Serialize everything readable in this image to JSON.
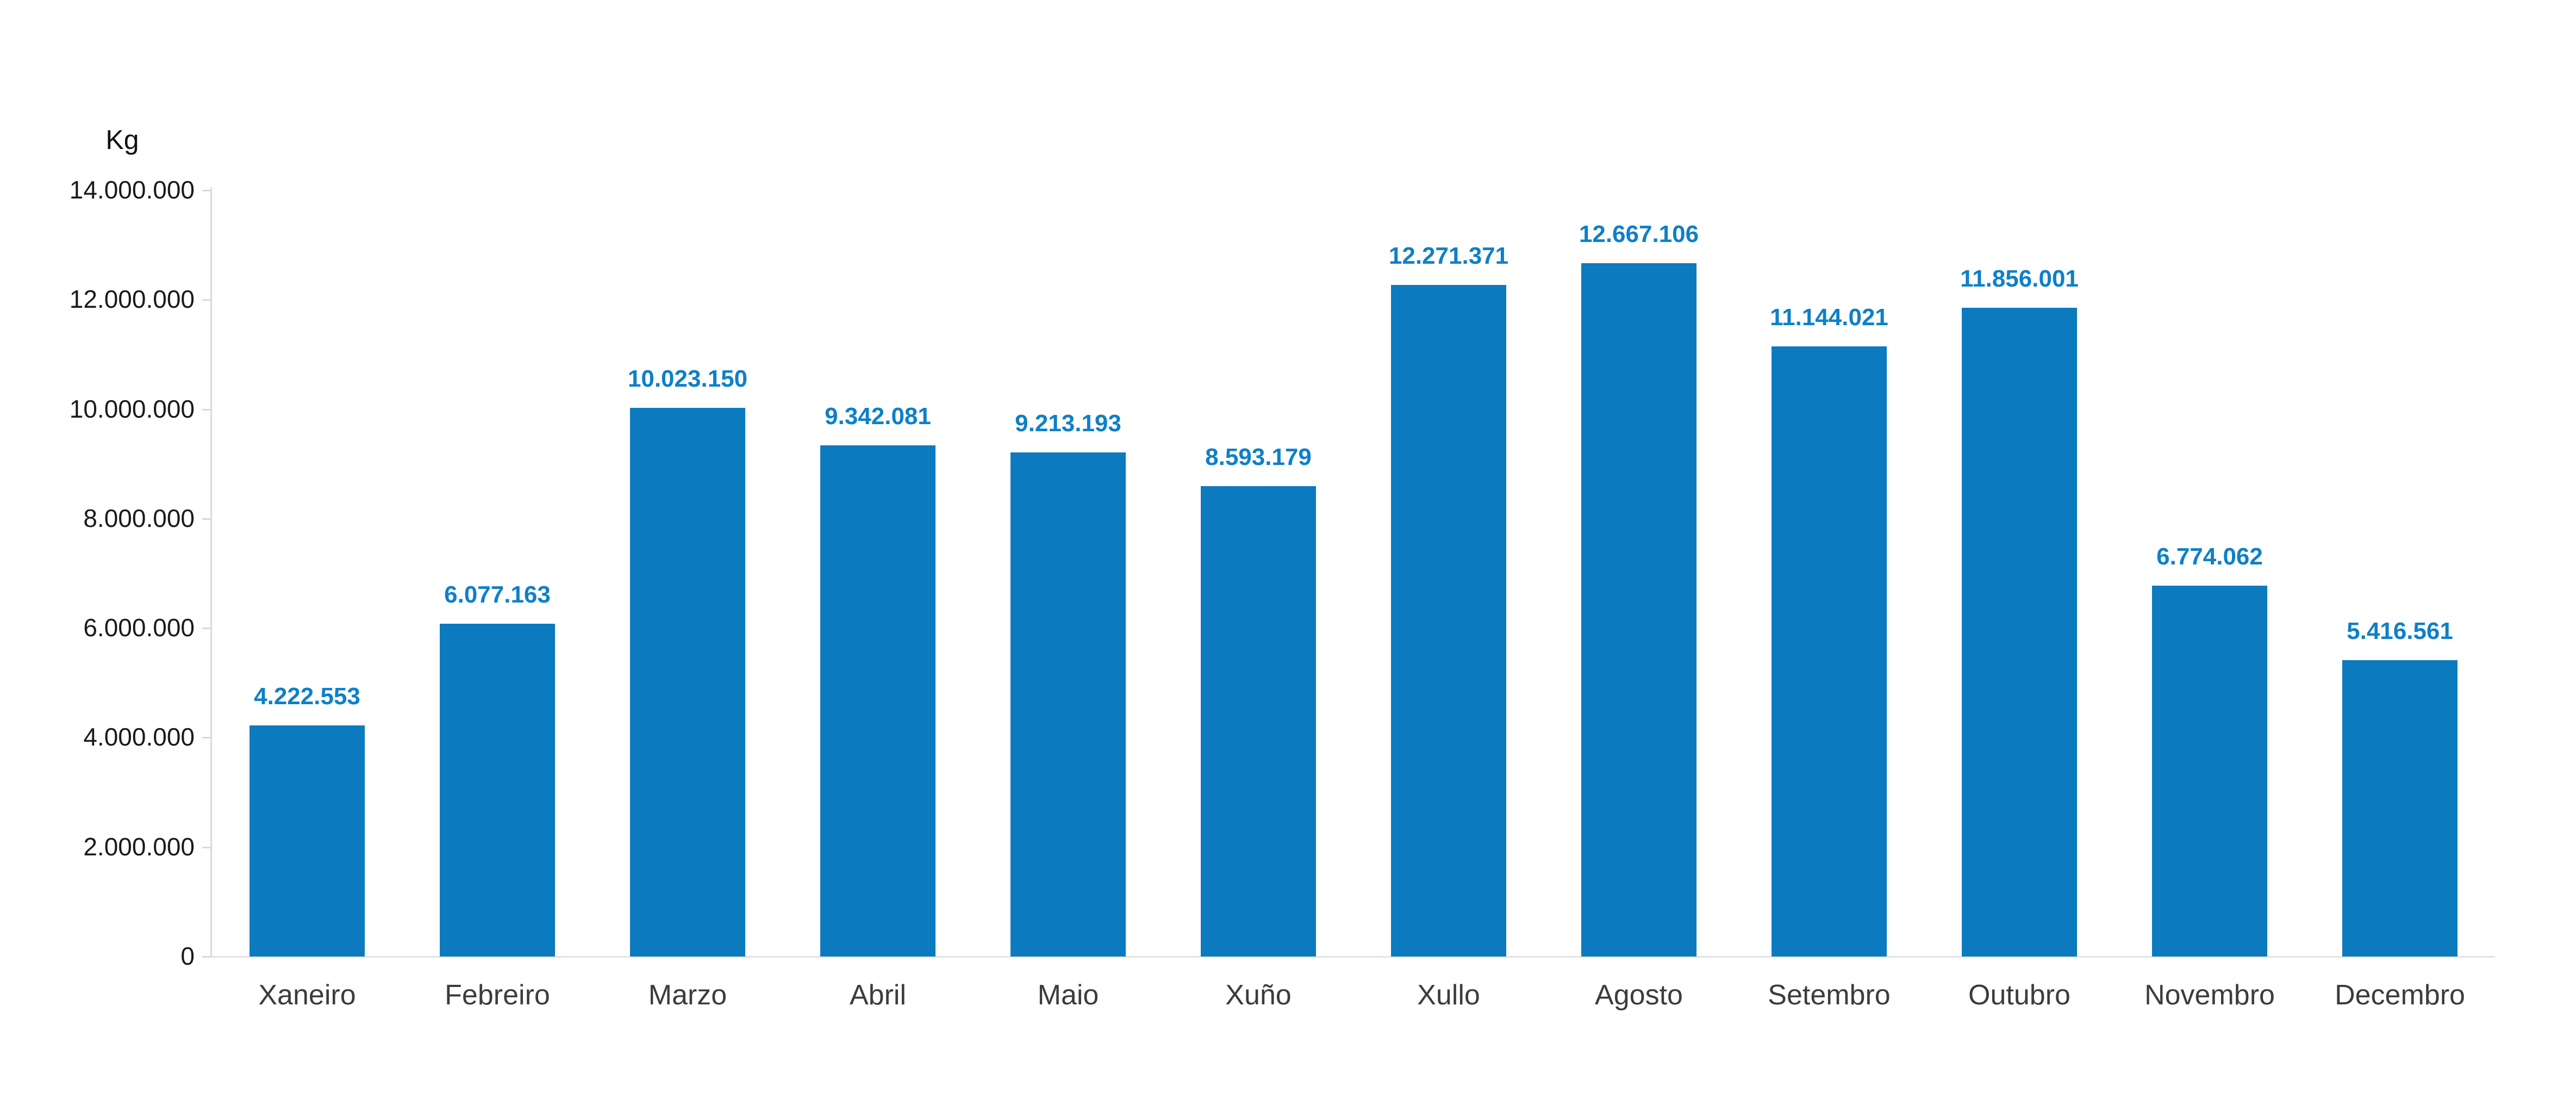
{
  "chart_data": {
    "type": "bar",
    "title": "",
    "ylabel": "Kg",
    "xlabel": "",
    "unit_label": "Kg",
    "categories": [
      "Xaneiro",
      "Febreiro",
      "Marzo",
      "Abril",
      "Maio",
      "Xuño",
      "Xullo",
      "Agosto",
      "Setembro",
      "Outubro",
      "Novembro",
      "Decembro"
    ],
    "values": [
      4222553,
      6077163,
      10023150,
      9342081,
      9213193,
      8593179,
      12271371,
      12667106,
      11144021,
      11856001,
      6774062,
      5416561
    ],
    "value_labels": [
      "4.222.553",
      "6.077.163",
      "10.023.150",
      "9.342.081",
      "9.213.193",
      "8.593.179",
      "12.271.371",
      "12.667.106",
      "11.144.021",
      "11.856.001",
      "6.774.062",
      "5.416.561"
    ],
    "ylim": [
      0,
      14000000
    ],
    "ytick_interval": 2000000,
    "ytick_labels": [
      "0",
      "2.000.000",
      "4.000.000",
      "6.000.000",
      "8.000.000",
      "10.000.000",
      "12.000.000",
      "14.000.000"
    ],
    "grid": false,
    "legend": false,
    "colors": {
      "bar": "#0b7abf",
      "value_label": "#0e80c8",
      "axis": "#d9d9d9",
      "baseline": "#e3e3e3",
      "tick_text": "#1a1a1a",
      "category_text": "#3c3c3c"
    }
  }
}
